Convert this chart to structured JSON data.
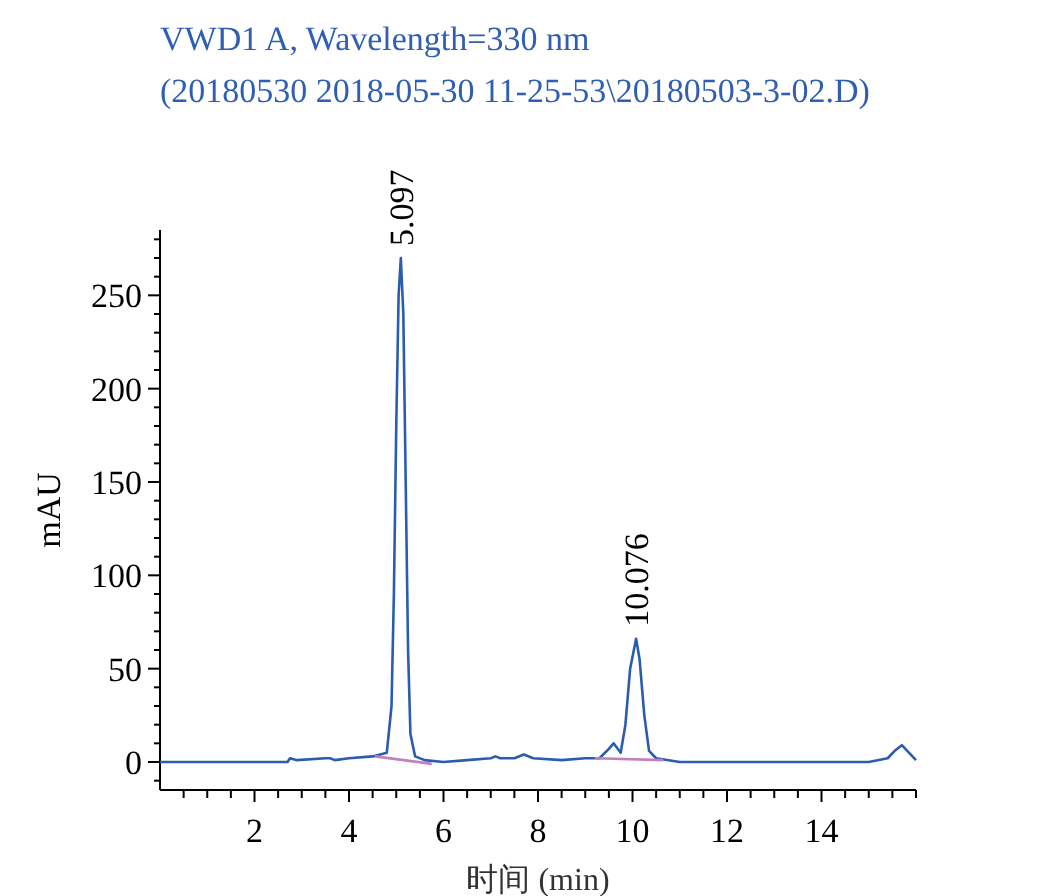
{
  "chart_data": {
    "type": "line",
    "title": "VWD1 A, Wavelength=330 nm",
    "subtitle": "(20180530 2018-05-30 11-25-53\\20180503-3-02.D)",
    "xlabel": "时间 (min)",
    "ylabel": "mAU",
    "xlim": [
      0,
      16
    ],
    "ylim": [
      -15,
      285
    ],
    "xticks": [
      {
        "value": 0.5,
        "label": null
      },
      {
        "value": 1,
        "label": null
      },
      {
        "value": 1.5,
        "label": null
      },
      2,
      {
        "value": 2.5,
        "label": null
      },
      {
        "value": 3,
        "label": null
      },
      {
        "value": 3.5,
        "label": null
      },
      4,
      {
        "value": 4.5,
        "label": null
      },
      {
        "value": 5,
        "label": null
      },
      {
        "value": 5.5,
        "label": null
      },
      6,
      {
        "value": 6.5,
        "label": null
      },
      {
        "value": 7,
        "label": null
      },
      {
        "value": 7.5,
        "label": null
      },
      8,
      {
        "value": 8.5,
        "label": null
      },
      {
        "value": 9,
        "label": null
      },
      {
        "value": 9.5,
        "label": null
      },
      10,
      {
        "value": 10.5,
        "label": null
      },
      {
        "value": 11,
        "label": null
      },
      {
        "value": 11.5,
        "label": null
      },
      12,
      {
        "value": 12.5,
        "label": null
      },
      {
        "value": 13,
        "label": null
      },
      {
        "value": 13.5,
        "label": null
      },
      14,
      {
        "value": 14.5,
        "label": null
      },
      {
        "value": 15,
        "label": null
      },
      {
        "value": 15.5,
        "label": null
      },
      {
        "value": 16,
        "label": null
      }
    ],
    "yticks": [
      {
        "value": -10,
        "label": null
      },
      0,
      {
        "value": 10,
        "label": null
      },
      {
        "value": 20,
        "label": null
      },
      {
        "value": 30,
        "label": null
      },
      {
        "value": 40,
        "label": null
      },
      50,
      {
        "value": 60,
        "label": null
      },
      {
        "value": 70,
        "label": null
      },
      {
        "value": 80,
        "label": null
      },
      {
        "value": 90,
        "label": null
      },
      100,
      {
        "value": 110,
        "label": null
      },
      {
        "value": 120,
        "label": null
      },
      {
        "value": 130,
        "label": null
      },
      {
        "value": 140,
        "label": null
      },
      150,
      {
        "value": 160,
        "label": null
      },
      {
        "value": 170,
        "label": null
      },
      {
        "value": 180,
        "label": null
      },
      {
        "value": 190,
        "label": null
      },
      200,
      {
        "value": 210,
        "label": null
      },
      {
        "value": 220,
        "label": null
      },
      {
        "value": 230,
        "label": null
      },
      {
        "value": 240,
        "label": null
      },
      250,
      {
        "value": 260,
        "label": null
      },
      {
        "value": 270,
        "label": null
      },
      {
        "value": 280,
        "label": null
      }
    ],
    "series": [
      {
        "color": "#2a5db0",
        "x": [
          0,
          2.7,
          2.75,
          2.9,
          3.5,
          3.6,
          3.7,
          4.0,
          4.5,
          4.8,
          4.9,
          4.95,
          5.0,
          5.05,
          5.097,
          5.15,
          5.2,
          5.25,
          5.3,
          5.4,
          5.6,
          6.0,
          6.5,
          7.0,
          7.1,
          7.2,
          7.5,
          7.7,
          7.9,
          8.5,
          9.0,
          9.3,
          9.5,
          9.6,
          9.75,
          9.85,
          9.95,
          10.076,
          10.15,
          10.25,
          10.35,
          10.5,
          11,
          12,
          13,
          14,
          15,
          15.4,
          15.55,
          15.7,
          15.85,
          16
        ],
        "values": [
          0,
          0,
          2,
          1,
          2,
          2,
          1,
          2,
          3,
          5,
          30,
          90,
          180,
          250,
          270,
          240,
          150,
          60,
          15,
          3,
          1,
          0,
          1,
          2,
          3,
          2,
          2,
          4,
          2,
          1,
          2,
          2,
          7,
          10,
          5,
          20,
          50,
          66,
          55,
          25,
          6,
          2,
          0,
          0,
          0,
          0,
          0,
          2,
          6,
          9,
          5,
          1
        ]
      },
      {
        "color": "#c080c0",
        "x": [
          4.55,
          5.75
        ],
        "values": [
          3,
          -1
        ]
      },
      {
        "color": "#c080c0",
        "x": [
          9.2,
          10.65
        ],
        "values": [
          2,
          1
        ]
      }
    ],
    "annotations": [
      {
        "text": "5.097",
        "x": 5.097,
        "y": 270
      },
      {
        "text": "10.076",
        "x": 10.076,
        "y": 66
      }
    ],
    "line_style": "solid",
    "grid": false
  }
}
